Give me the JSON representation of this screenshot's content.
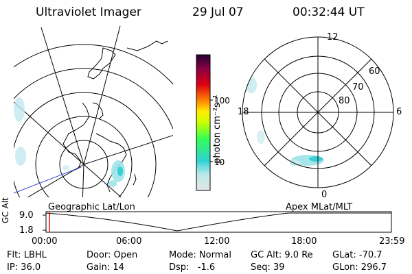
{
  "header": {
    "instrument": "Ultraviolet Imager",
    "date": "29 Jul 07",
    "time": "00:32:44 UT"
  },
  "colorbar": {
    "unit_label": "photon cm⁻²s⁻¹",
    "ticks": [
      "100",
      "10"
    ],
    "scale": "log",
    "colors": [
      "#c8c8c8",
      "#2fd2d2",
      "#66ff33",
      "#ffff00",
      "#ff8800",
      "#cc0000",
      "#880044",
      "#330044"
    ]
  },
  "geo_map": {
    "caption": "Geographic Lat/Lon"
  },
  "polar_map": {
    "caption": "Apex MLat/MLT",
    "mlt_labels": {
      "top": "12",
      "left": "18",
      "right": "6",
      "bottom": "0"
    },
    "lat_labels": [
      "60",
      "70",
      "80"
    ]
  },
  "altitude_panel": {
    "ylabel": "GC Alt",
    "yticks": [
      "9.0",
      "1.8"
    ],
    "xticks": [
      "00:00",
      "06:00",
      "12:00",
      "18:00",
      "23:59"
    ],
    "marker_time": "00:32:44",
    "marker_color": "#ff0000"
  },
  "info": {
    "flt": "Flt: LBHL",
    "ip": "IP: 36.0",
    "door": "Door: Open",
    "gain": "Gain: 14",
    "mode": "Mode: Normal",
    "dsp": "Dsp:   -1.6",
    "gcalt": "GC Alt: 9.0 Re",
    "seq": "Seq: 39",
    "glat": "GLat: -70.7",
    "glon": "GLon: 296.7"
  }
}
